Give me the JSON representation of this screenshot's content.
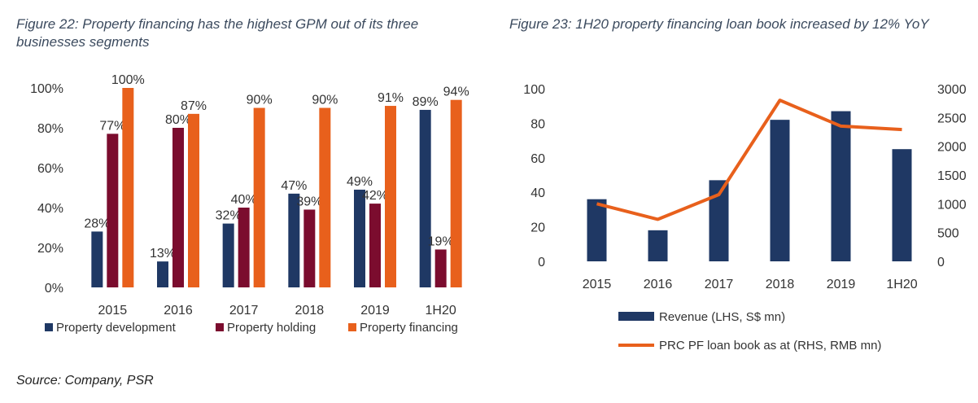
{
  "figures": {
    "left_title": "Figure 22: Property financing has the highest GPM out of its three businesses segments",
    "right_title": "Figure 23: 1H20 property financing loan book increased by 12% YoY",
    "source": "Source: Company, PSR"
  },
  "chart_data": [
    {
      "type": "bar",
      "title": "Figure 22: Property financing has the highest GPM out of its three businesses segments",
      "categories": [
        "2015",
        "2016",
        "2017",
        "2018",
        "2019",
        "1H20"
      ],
      "ylim": [
        0,
        100
      ],
      "yticks": [
        "0%",
        "20%",
        "40%",
        "60%",
        "80%",
        "100%"
      ],
      "grid": false,
      "legend": "bottom",
      "series": [
        {
          "name": "Property development",
          "color": "#1f3864",
          "values": [
            28,
            13,
            32,
            47,
            49,
            89
          ],
          "labels": [
            "28%",
            "13%",
            "32%",
            "47%",
            "49%",
            "89%"
          ]
        },
        {
          "name": "Property holding",
          "color": "#7b0c2e",
          "values": [
            77,
            80,
            40,
            39,
            42,
            19
          ],
          "labels": [
            "77%",
            "80%",
            "40%",
            "39%",
            "42%",
            "19%"
          ]
        },
        {
          "name": "Property financing",
          "color": "#e8601c",
          "values": [
            100,
            87,
            90,
            90,
            91,
            94
          ],
          "labels": [
            "100%",
            "87%",
            "90%",
            "90%",
            "91%",
            "94%"
          ]
        }
      ]
    },
    {
      "type": "bar+line",
      "title": "Figure 23: 1H20 property financing loan book increased by 12% YoY",
      "categories": [
        "2015",
        "2016",
        "2017",
        "2018",
        "2019",
        "1H20"
      ],
      "ylim_left": [
        0,
        100
      ],
      "yticks_left": [
        "0",
        "20",
        "40",
        "60",
        "80",
        "100"
      ],
      "ylim_right": [
        0,
        3000
      ],
      "yticks_right": [
        "0",
        "500",
        "1000",
        "1500",
        "2000",
        "2500",
        "3000"
      ],
      "grid": false,
      "legend": "bottom",
      "series": [
        {
          "name": "Revenue (LHS, S$ mn)",
          "type": "bar",
          "axis": "left",
          "color": "#1f3864",
          "values": [
            36,
            18,
            47,
            82,
            87,
            65
          ]
        },
        {
          "name": "PRC PF loan book as at (RHS, RMB mn)",
          "type": "line",
          "axis": "right",
          "color": "#e8601c",
          "values": [
            1000,
            730,
            1160,
            2800,
            2350,
            2290
          ]
        }
      ]
    }
  ]
}
